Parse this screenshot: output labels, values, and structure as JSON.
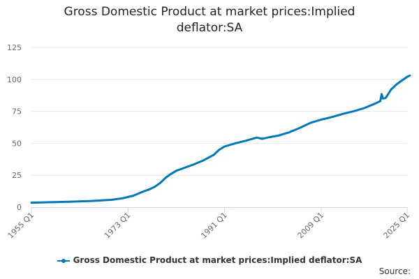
{
  "chart_data": {
    "type": "line",
    "title": "Gross Domestic Product at market prices:Implied deflator:SA",
    "title_lines": [
      "Gross Domestic Product at market prices:Implied",
      "deflator:SA"
    ],
    "xlabel": "",
    "ylabel": "",
    "ylim": [
      0,
      125
    ],
    "y_ticks": [
      0,
      25,
      50,
      75,
      100,
      125
    ],
    "x_tick_labels": [
      "1955 Q1",
      "1973 Q1",
      "1991 Q1",
      "2009 Q1",
      "2025 Q1"
    ],
    "x_tick_years": [
      1955,
      1973,
      1991,
      2009,
      2025
    ],
    "grid": true,
    "legend_position": "bottom",
    "series": [
      {
        "name": "Gross Domestic Product at market prices:Implied deflator:SA",
        "color": "#0077b6",
        "x": [
          1955,
          1958,
          1962,
          1966,
          1970,
          1972,
          1974,
          1976,
          1977,
          1978,
          1979,
          1980,
          1981,
          1982,
          1983,
          1985,
          1987,
          1989,
          1990,
          1991,
          1993,
          1995,
          1997,
          1998,
          1999,
          2001,
          2003,
          2005,
          2007,
          2009,
          2011,
          2013,
          2015,
          2017,
          2019,
          2020,
          2020.25,
          2020.5,
          2021,
          2022,
          2023,
          2024,
          2025,
          2025.5
        ],
        "y": [
          3.5,
          3.8,
          4.2,
          4.8,
          5.8,
          7.0,
          9.0,
          12.5,
          14.0,
          16.0,
          19.0,
          23.0,
          26.0,
          28.5,
          30.0,
          33.0,
          36.5,
          41.0,
          45.0,
          47.5,
          50.0,
          52.0,
          54.5,
          53.5,
          54.5,
          56.0,
          58.5,
          62.0,
          66.0,
          68.5,
          70.5,
          73.0,
          75.0,
          77.5,
          81.0,
          83.0,
          88.5,
          85.0,
          85.5,
          92.0,
          96.0,
          99.0,
          102.0,
          103.0
        ]
      }
    ]
  },
  "legend": {
    "label": "Gross Domestic Product at market prices:Implied deflator:SA"
  },
  "source_label": "Source:"
}
